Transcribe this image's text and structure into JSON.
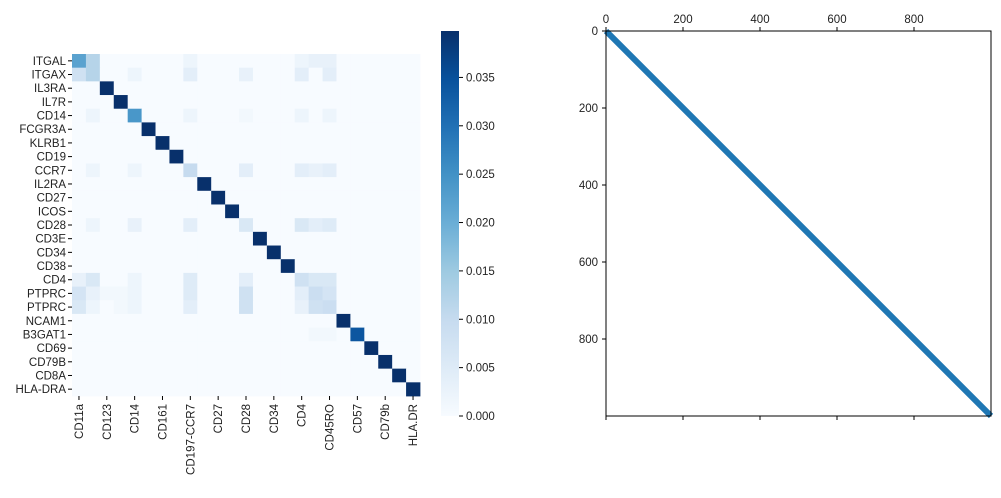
{
  "chart_data": [
    {
      "type": "heatmap",
      "title": "",
      "xlabel": "",
      "ylabel": "",
      "row_labels": [
        "ITGAL",
        "ITGAX",
        "IL3RA",
        "IL7R",
        "CD14",
        "FCGR3A",
        "KLRB1",
        "CD19",
        "CCR7",
        "IL2RA",
        "CD27",
        "ICOS",
        "CD28",
        "CD3E",
        "CD34",
        "CD38",
        "CD4",
        "PTPRC",
        "PTPRC",
        "NCAM1",
        "B3GAT1",
        "CD69",
        "CD79B",
        "CD8A",
        "HLA-DRA"
      ],
      "col_tick_labels": [
        "CD11a",
        "CD123",
        "CD14",
        "CD161",
        "CD197-CCR7",
        "CD27",
        "CD28",
        "CD34",
        "CD4",
        "CD45RO",
        "CD57",
        "CD79b",
        "HLA.DR"
      ],
      "col_tick_positions": [
        0,
        2,
        4,
        6,
        8,
        10,
        12,
        14,
        16,
        18,
        20,
        22,
        24
      ],
      "n_cols": 25,
      "colorbar": {
        "range": [
          0,
          0.0398
        ],
        "ticks": [
          "0.000",
          "0.005",
          "0.010",
          "0.015",
          "0.020",
          "0.025",
          "0.030",
          "0.035"
        ],
        "tick_values": [
          0,
          0.005,
          0.01,
          0.015,
          0.02,
          0.025,
          0.03,
          0.035
        ]
      },
      "diagonal_values": [
        0.022,
        0.012,
        0.0398,
        0.0398,
        0.024,
        0.0398,
        0.0398,
        0.0398,
        0.01,
        0.0398,
        0.0398,
        0.0398,
        0.006,
        0.0398,
        0.0398,
        0.0398,
        0.008,
        0.009,
        0.009,
        0.0398,
        0.034,
        0.0398,
        0.0398,
        0.0398,
        0.0398
      ],
      "off_diagonal": [
        [
          0,
          1,
          0.012
        ],
        [
          1,
          0,
          0.008
        ],
        [
          1,
          4,
          0.002
        ],
        [
          1,
          8,
          0.004
        ],
        [
          1,
          12,
          0.003
        ],
        [
          1,
          16,
          0.004
        ],
        [
          1,
          18,
          0.004
        ],
        [
          4,
          1,
          0.002
        ],
        [
          4,
          8,
          0.002
        ],
        [
          4,
          12,
          0.001
        ],
        [
          4,
          16,
          0.002
        ],
        [
          4,
          18,
          0.002
        ],
        [
          8,
          1,
          0.002
        ],
        [
          8,
          4,
          0.002
        ],
        [
          8,
          12,
          0.004
        ],
        [
          8,
          16,
          0.004
        ],
        [
          8,
          17,
          0.003
        ],
        [
          8,
          18,
          0.004
        ],
        [
          12,
          1,
          0.002
        ],
        [
          12,
          4,
          0.003
        ],
        [
          12,
          8,
          0.004
        ],
        [
          12,
          16,
          0.006
        ],
        [
          12,
          17,
          0.004
        ],
        [
          12,
          18,
          0.005
        ],
        [
          16,
          0,
          0.003
        ],
        [
          16,
          1,
          0.006
        ],
        [
          16,
          4,
          0.002
        ],
        [
          16,
          8,
          0.005
        ],
        [
          16,
          12,
          0.004
        ],
        [
          16,
          17,
          0.006
        ],
        [
          16,
          18,
          0.006
        ],
        [
          17,
          0,
          0.007
        ],
        [
          17,
          1,
          0.003
        ],
        [
          17,
          2,
          0.001
        ],
        [
          17,
          3,
          0.001
        ],
        [
          17,
          4,
          0.002
        ],
        [
          17,
          8,
          0.005
        ],
        [
          17,
          12,
          0.008
        ],
        [
          17,
          16,
          0.004
        ],
        [
          17,
          18,
          0.007
        ],
        [
          18,
          0,
          0.006
        ],
        [
          18,
          1,
          0.002
        ],
        [
          18,
          3,
          0.001
        ],
        [
          18,
          4,
          0.002
        ],
        [
          18,
          8,
          0.004
        ],
        [
          18,
          12,
          0.008
        ],
        [
          18,
          16,
          0.003
        ],
        [
          18,
          17,
          0.008
        ],
        [
          0,
          8,
          0.002
        ],
        [
          0,
          16,
          0.002
        ],
        [
          0,
          17,
          0.003
        ],
        [
          0,
          18,
          0.003
        ],
        [
          20,
          17,
          0.001
        ],
        [
          20,
          18,
          0.001
        ]
      ]
    },
    {
      "type": "line",
      "title": "",
      "xlabel": "",
      "ylabel": "",
      "x_axis_position": "top",
      "xlim": [
        0,
        1000
      ],
      "ylim": [
        1000,
        0
      ],
      "x_ticks": [
        0,
        200,
        400,
        600,
        800
      ],
      "y_ticks": [
        0,
        200,
        400,
        600,
        800
      ],
      "series": [
        {
          "x": [
            0,
            1000
          ],
          "y": [
            0,
            1000
          ],
          "color": "#1f77b4"
        }
      ]
    }
  ]
}
